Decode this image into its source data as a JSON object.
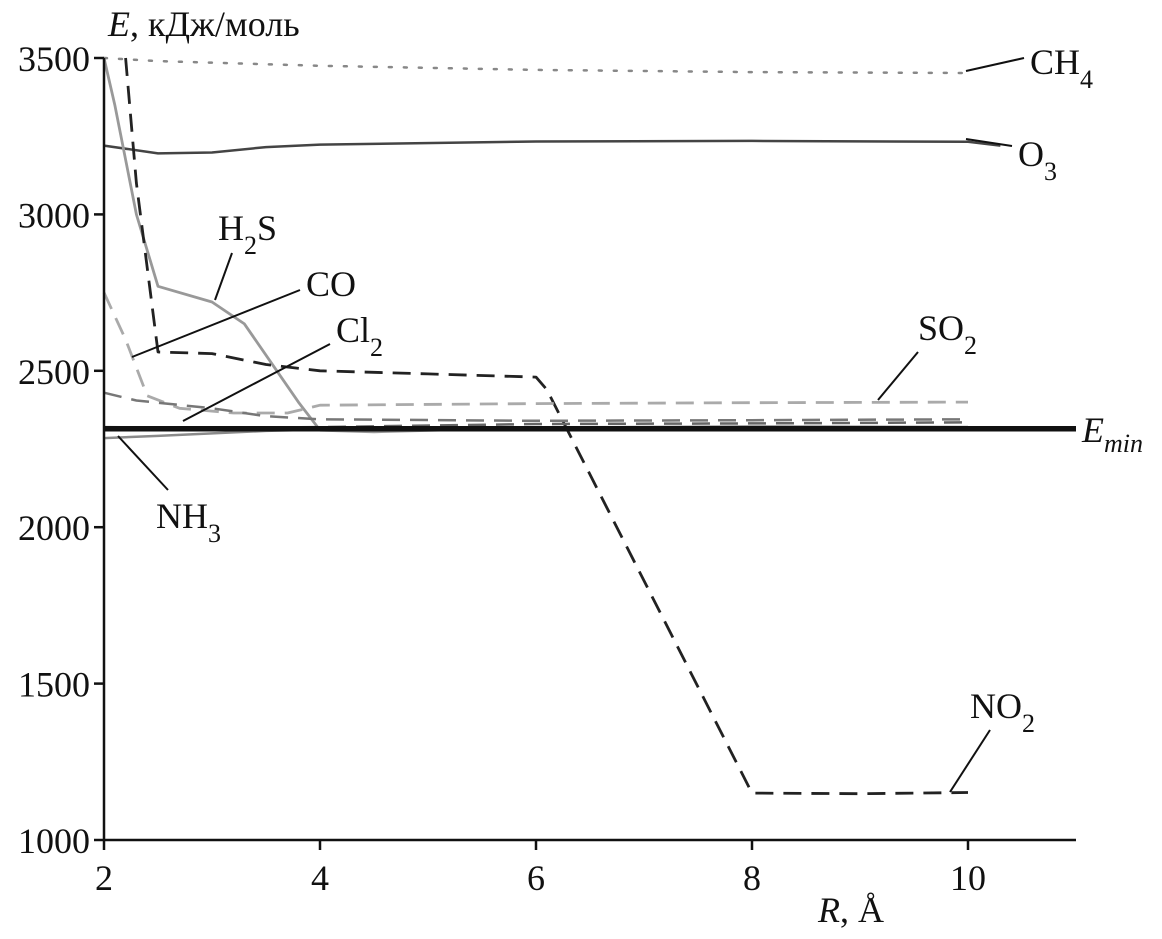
{
  "chart_data": {
    "type": "line",
    "xlabel_main": "R",
    "xlabel_unit": ", Å",
    "ylabel_main": "E",
    "ylabel_unit": ", кДж/моль",
    "xlim": [
      2,
      11
    ],
    "ylim": [
      1000,
      3500
    ],
    "x_ticks": [
      2,
      4,
      6,
      8,
      10
    ],
    "y_ticks": [
      1000,
      1500,
      2000,
      2500,
      3000,
      3500
    ],
    "grid": false,
    "series": [
      {
        "key": "ch4",
        "name_main": "CH",
        "name_sub": "4",
        "color": "#888888",
        "style": "dotted",
        "width": 2.5,
        "points": [
          [
            2.0,
            3500
          ],
          [
            2.5,
            3490
          ],
          [
            4,
            3475
          ],
          [
            6,
            3462
          ],
          [
            8,
            3455
          ],
          [
            10,
            3452
          ]
        ]
      },
      {
        "key": "o3",
        "name_main": "O",
        "name_sub": "3",
        "color": "#444444",
        "style": "solid",
        "width": 2.5,
        "points": [
          [
            2.0,
            3220
          ],
          [
            2.5,
            3195
          ],
          [
            3.0,
            3198
          ],
          [
            3.5,
            3215
          ],
          [
            4,
            3223
          ],
          [
            6,
            3233
          ],
          [
            8,
            3235
          ],
          [
            10,
            3232
          ],
          [
            10.3,
            3220
          ]
        ]
      },
      {
        "key": "h2s",
        "name_main": "H",
        "name_sub": "2",
        "name_tail": "S",
        "color": "#999999",
        "style": "solid",
        "width": 2.8,
        "points": [
          [
            2.0,
            3500
          ],
          [
            2.1,
            3350
          ],
          [
            2.3,
            3000
          ],
          [
            2.5,
            2770
          ],
          [
            3.0,
            2720
          ],
          [
            3.3,
            2650
          ],
          [
            3.6,
            2500
          ],
          [
            3.8,
            2400
          ],
          [
            4.0,
            2310
          ],
          [
            4.5,
            2305
          ],
          [
            6,
            2318
          ],
          [
            8,
            2322
          ],
          [
            10,
            2320
          ]
        ]
      },
      {
        "key": "no2",
        "name_main": "NO",
        "name_sub": "2",
        "color": "#222222",
        "style": "dashed",
        "width": 2.8,
        "points": [
          [
            2.2,
            3500
          ],
          [
            2.3,
            3100
          ],
          [
            2.5,
            2560
          ],
          [
            3.0,
            2555
          ],
          [
            3.5,
            2520
          ],
          [
            4.0,
            2500
          ],
          [
            5.0,
            2490
          ],
          [
            6.0,
            2480
          ],
          [
            6.1,
            2440
          ],
          [
            8.0,
            1150
          ],
          [
            9.0,
            1148
          ],
          [
            10.0,
            1152
          ]
        ]
      },
      {
        "key": "so2",
        "name_main": "SO",
        "name_sub": "2",
        "color": "#aaaaaa",
        "style": "dashed",
        "width": 2.8,
        "points": [
          [
            2.0,
            2750
          ],
          [
            2.2,
            2600
          ],
          [
            2.4,
            2420
          ],
          [
            2.7,
            2380
          ],
          [
            3.2,
            2365
          ],
          [
            3.7,
            2365
          ],
          [
            4.0,
            2390
          ],
          [
            6,
            2395
          ],
          [
            8,
            2398
          ],
          [
            10,
            2400
          ]
        ]
      },
      {
        "key": "cl2",
        "name_main": "Cl",
        "name_sub": "2",
        "color": "#777777",
        "style": "dashed",
        "width": 2.5,
        "points": [
          [
            2.0,
            2430
          ],
          [
            2.3,
            2405
          ],
          [
            3.0,
            2380
          ],
          [
            3.5,
            2355
          ],
          [
            4.0,
            2345
          ],
          [
            6,
            2340
          ],
          [
            8,
            2342
          ],
          [
            10,
            2345
          ]
        ]
      },
      {
        "key": "co",
        "name_main": "CO",
        "name_sub": "",
        "color": "#666666",
        "style": "dashed",
        "width": 2.5,
        "points": [
          [
            2.0,
            2320
          ],
          [
            3.0,
            2318
          ],
          [
            4.0,
            2320
          ],
          [
            6,
            2330
          ],
          [
            8,
            2332
          ],
          [
            10,
            2335
          ]
        ]
      },
      {
        "key": "nh3",
        "name_main": "NH",
        "name_sub": "3",
        "color": "#8a8a8a",
        "style": "solid",
        "width": 2.5,
        "points": [
          [
            2.0,
            2285
          ],
          [
            2.5,
            2292
          ],
          [
            3.0,
            2300
          ],
          [
            3.5,
            2308
          ],
          [
            4.0,
            2312
          ],
          [
            6,
            2315
          ],
          [
            8,
            2317
          ],
          [
            10,
            2318
          ]
        ]
      },
      {
        "key": "emin",
        "name_main": "E",
        "name_sub": "min",
        "color": "#111111",
        "style": "solid",
        "width": 5.5,
        "points": [
          [
            2.0,
            2315
          ],
          [
            11.0,
            2315
          ]
        ]
      }
    ]
  }
}
